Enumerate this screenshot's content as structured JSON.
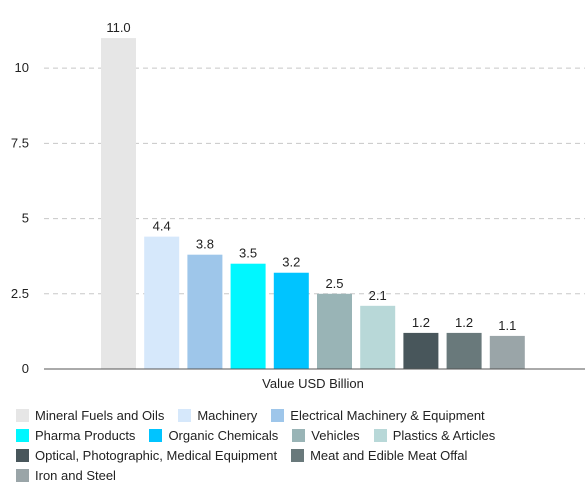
{
  "chart_data": {
    "type": "bar",
    "categories": [
      "Mineral Fuels and Oils",
      "Machinery",
      "Electrical Machinery & Equipment",
      "Pharma Products",
      "Organic Chemicals",
      "Vehicles",
      "Plastics & Articles",
      "Optical, Photographic, Medical Equipment",
      "Meat and Edible Meat Offal",
      "Iron and Steel"
    ],
    "values": [
      11.0,
      4.4,
      3.8,
      3.5,
      3.2,
      2.5,
      2.1,
      1.2,
      1.2,
      1.1
    ],
    "value_labels": [
      "11.0",
      "4.4",
      "3.8",
      "3.5",
      "3.2",
      "2.5",
      "2.1",
      "1.2",
      "1.2",
      "1.1"
    ],
    "colors": [
      "#e6e6e6",
      "#d6e8fb",
      "#9ec6ea",
      "#00f7ff",
      "#00c4ff",
      "#99b4b6",
      "#b8d8d8",
      "#48565b",
      "#69797b",
      "#9aa5a8"
    ],
    "xlabel": "Value USD Billion",
    "ylabel": "",
    "ylim": [
      0,
      12
    ],
    "yticks": [
      0,
      2.5,
      5,
      7.5,
      10
    ],
    "ytick_labels": [
      "0",
      "2.5",
      "5",
      "7.5",
      "10"
    ],
    "grid": true,
    "legend": "bottom"
  }
}
